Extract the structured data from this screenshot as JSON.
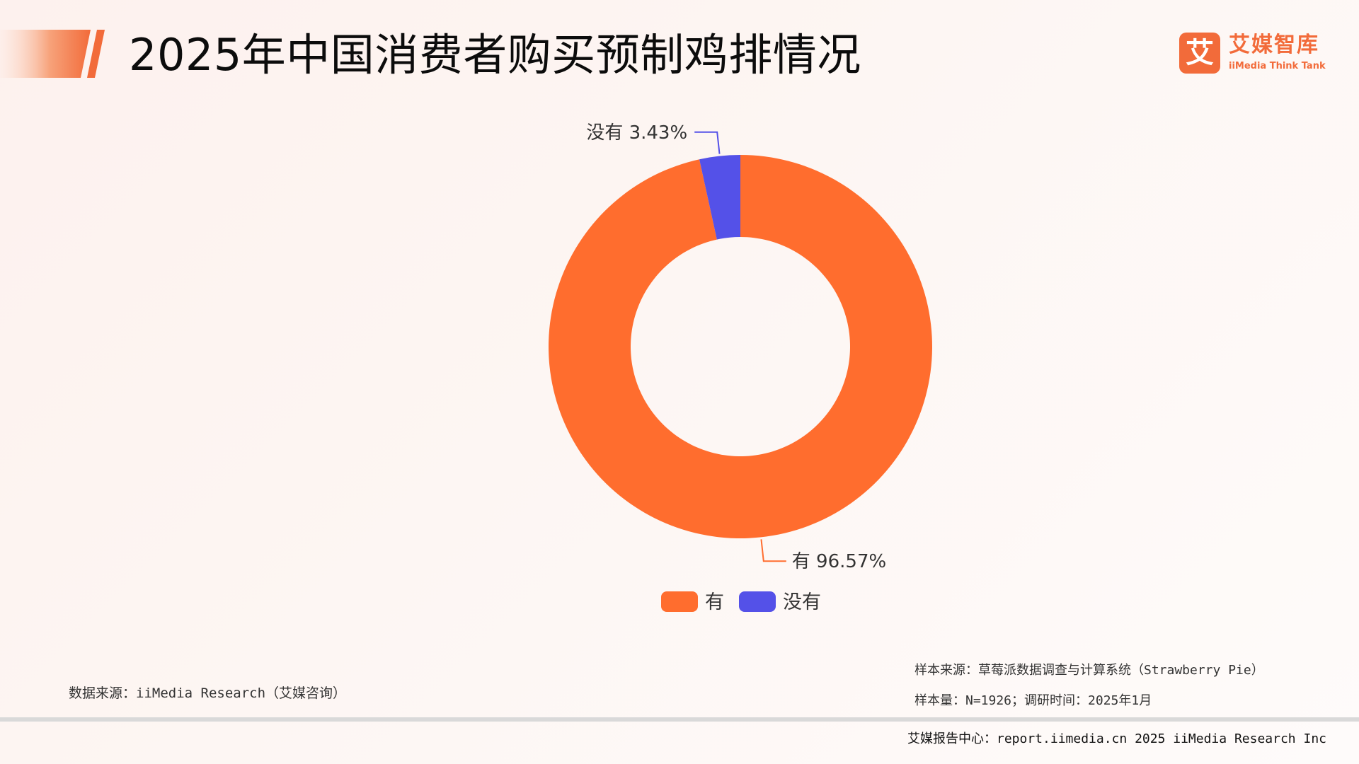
{
  "header": {
    "title": "2025年中国消费者购买预制鸡排情况"
  },
  "logo": {
    "mark": "艾",
    "cn": "艾媒智库",
    "en": "iiMedia Think Tank"
  },
  "colors": {
    "accent": "#f26b3a",
    "series_yes": "#ff6d2e",
    "series_no": "#5451e8"
  },
  "chart_data": {
    "type": "pie",
    "donut": true,
    "title": "",
    "categories": [
      "有",
      "没有"
    ],
    "values": [
      96.57,
      3.43
    ],
    "data_labels": [
      "有 96.57%",
      "没有 3.43%"
    ],
    "colors": [
      "#ff6d2e",
      "#5451e8"
    ],
    "legend": [
      "有",
      "没有"
    ],
    "legend_position": "bottom"
  },
  "footer": {
    "data_source": "数据来源：iiMedia Research（艾媒咨询）",
    "sample_source": "样本来源：草莓派数据调查与计算系统（Strawberry Pie）",
    "sample_size": "样本量：N=1926；调研时间：2025年1月",
    "report_center": "艾媒报告中心：report.iimedia.cn 2025 iiMedia Research Inc"
  }
}
